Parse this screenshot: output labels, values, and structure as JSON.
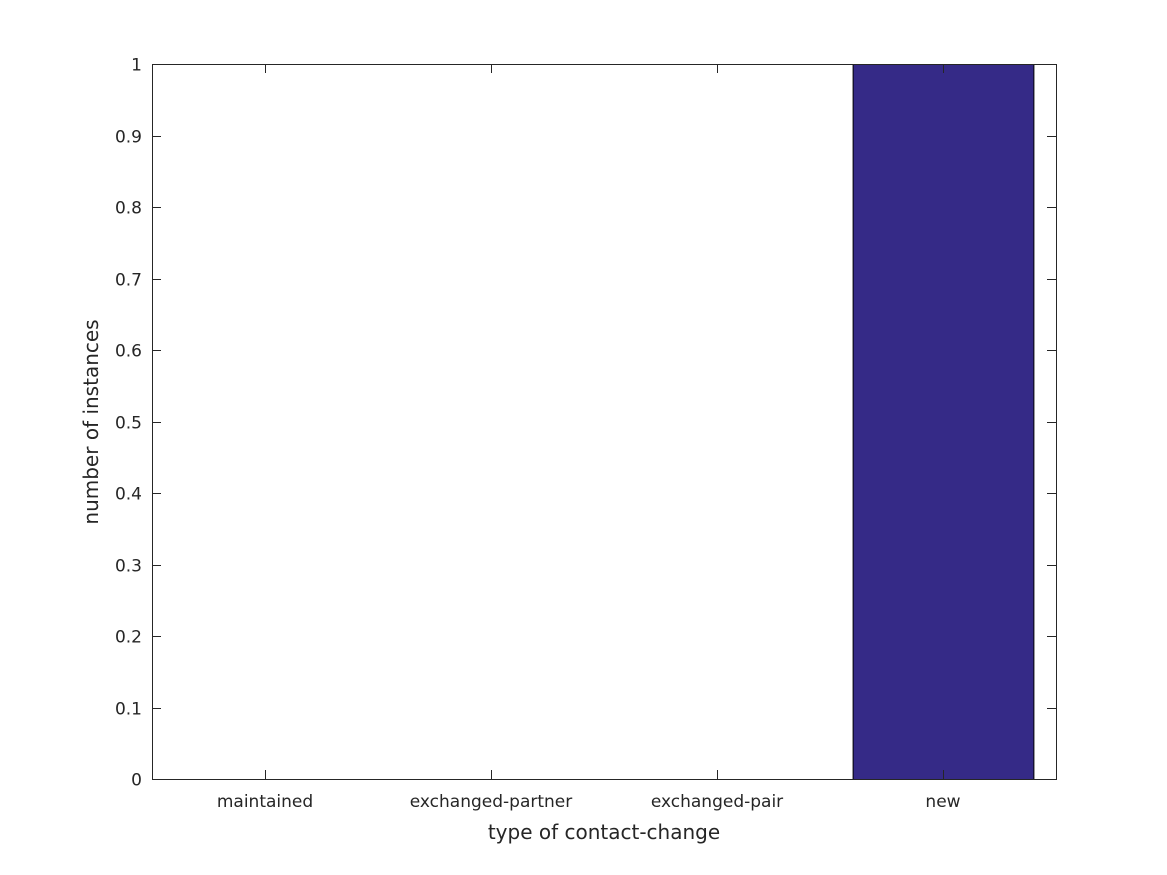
{
  "chart_data": {
    "type": "bar",
    "categories": [
      "maintained",
      "exchanged-partner",
      "exchanged-pair",
      "new"
    ],
    "values": [
      0,
      0,
      0,
      1
    ],
    "title": "",
    "xlabel": "type of contact-change",
    "ylabel": "number of instances",
    "ylim": [
      0,
      1
    ],
    "yticks": [
      "0",
      "0.1",
      "0.2",
      "0.3",
      "0.4",
      "0.5",
      "0.6",
      "0.7",
      "0.8",
      "0.9",
      "1"
    ],
    "grid": false,
    "bar_color": "#352a87"
  }
}
